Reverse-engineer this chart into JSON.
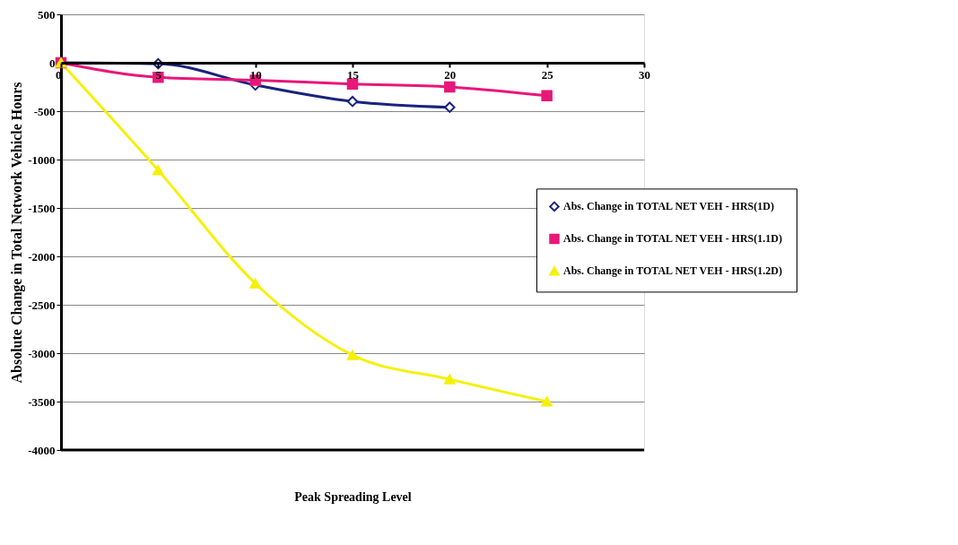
{
  "chart_data": {
    "type": "line",
    "xlabel": "Peak Spreading Level",
    "ylabel": "Absolute Change in Total Network Vehicle Hours",
    "xlim": [
      0,
      30
    ],
    "xticks": [
      0,
      5,
      10,
      15,
      20,
      25,
      30
    ],
    "ylim": [
      -4000,
      500
    ],
    "yticks": [
      -4000,
      -3500,
      -3000,
      -2500,
      -2000,
      -1500,
      -1000,
      -500,
      0,
      500
    ],
    "grid": "y",
    "legend": "right",
    "line_style": "solid",
    "series": [
      {
        "name": "Abs. Change in TOTAL NET VEH - HRS(1D)",
        "color": "#1a237e",
        "marker": "diamond",
        "x": [
          0,
          5,
          10,
          15,
          20
        ],
        "values": [
          0,
          -10,
          -230,
          -400,
          -460
        ]
      },
      {
        "name": "Abs. Change in TOTAL NET VEH - HRS(1.1D)",
        "color": "#e8177a",
        "marker": "square",
        "x": [
          0,
          5,
          10,
          15,
          20,
          25
        ],
        "values": [
          0,
          -150,
          -180,
          -220,
          -250,
          -340
        ]
      },
      {
        "name": "Abs. Change in TOTAL NET VEH - HRS(1.2D)",
        "color": "#f5f00a",
        "marker": "triangle",
        "x": [
          0,
          5,
          10,
          15,
          20,
          25
        ],
        "values": [
          0,
          -1110,
          -2280,
          -3020,
          -3270,
          -3500
        ]
      }
    ]
  }
}
